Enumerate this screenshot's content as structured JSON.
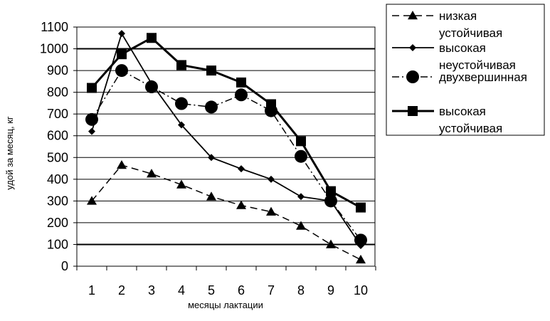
{
  "chart_data": {
    "type": "line",
    "title": "",
    "xlabel": "месяцы лактации",
    "ylabel": "удой за месяц, кг",
    "x": [
      1,
      2,
      3,
      4,
      5,
      6,
      7,
      8,
      9,
      10
    ],
    "ylim": [
      0,
      1100
    ],
    "yticks": [
      0,
      100,
      200,
      300,
      400,
      500,
      600,
      700,
      800,
      900,
      1000,
      1100
    ],
    "grid": true,
    "legend_position": "top-right",
    "series": [
      {
        "name": "низкая устойчивая",
        "marker": "triangle",
        "line_style": "dashed",
        "values": [
          300,
          465,
          425,
          375,
          320,
          280,
          250,
          185,
          100,
          30
        ]
      },
      {
        "name": "высокая неустойчивая",
        "marker": "diamond",
        "line_style": "solid",
        "values": [
          620,
          1070,
          840,
          650,
          500,
          448,
          400,
          320,
          300,
          95
        ]
      },
      {
        "name": "двухвершинная",
        "marker": "circle",
        "line_style": "dash-dot",
        "values": [
          675,
          900,
          825,
          748,
          732,
          788,
          715,
          505,
          300,
          120
        ]
      },
      {
        "name": "высокая устойчивая",
        "marker": "square",
        "line_style": "solid-thick",
        "values": [
          820,
          975,
          1050,
          925,
          900,
          845,
          745,
          575,
          345,
          270
        ]
      }
    ]
  }
}
